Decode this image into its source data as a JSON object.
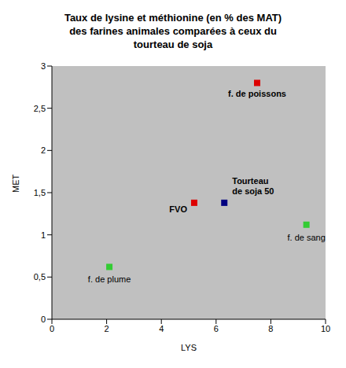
{
  "chart_data": {
    "type": "scatter",
    "title": "Taux de lysine et méthionine (en % des MAT) des farines animales comparées à ceux du tourteau de soja",
    "x_label": "LYS",
    "y_label": "MET",
    "point_labels": [
      "f. de poissons",
      "FVO",
      "Tourteau de soja 50",
      "f. de sang",
      "f. de plume"
    ],
    "x": [
      7.5,
      5.2,
      6.3,
      9.3,
      2.1
    ],
    "values": [
      2.8,
      1.38,
      1.38,
      1.12,
      0.62
    ],
    "colors": [
      "#dd0000",
      "#dd0000",
      "#000080",
      "#33cc33",
      "#33cc33"
    ],
    "marker": "square",
    "xlim": [
      0,
      10
    ],
    "xticks": [
      0,
      2,
      4,
      6,
      8,
      10
    ],
    "ylim": [
      0,
      3
    ],
    "yticks": [
      0,
      {
        "value": 0.5,
        "label": "0,5"
      },
      1,
      {
        "value": 1.5,
        "label": "1,5"
      },
      2,
      {
        "value": 2.5,
        "label": "2,5"
      },
      3
    ],
    "grid": false
  }
}
